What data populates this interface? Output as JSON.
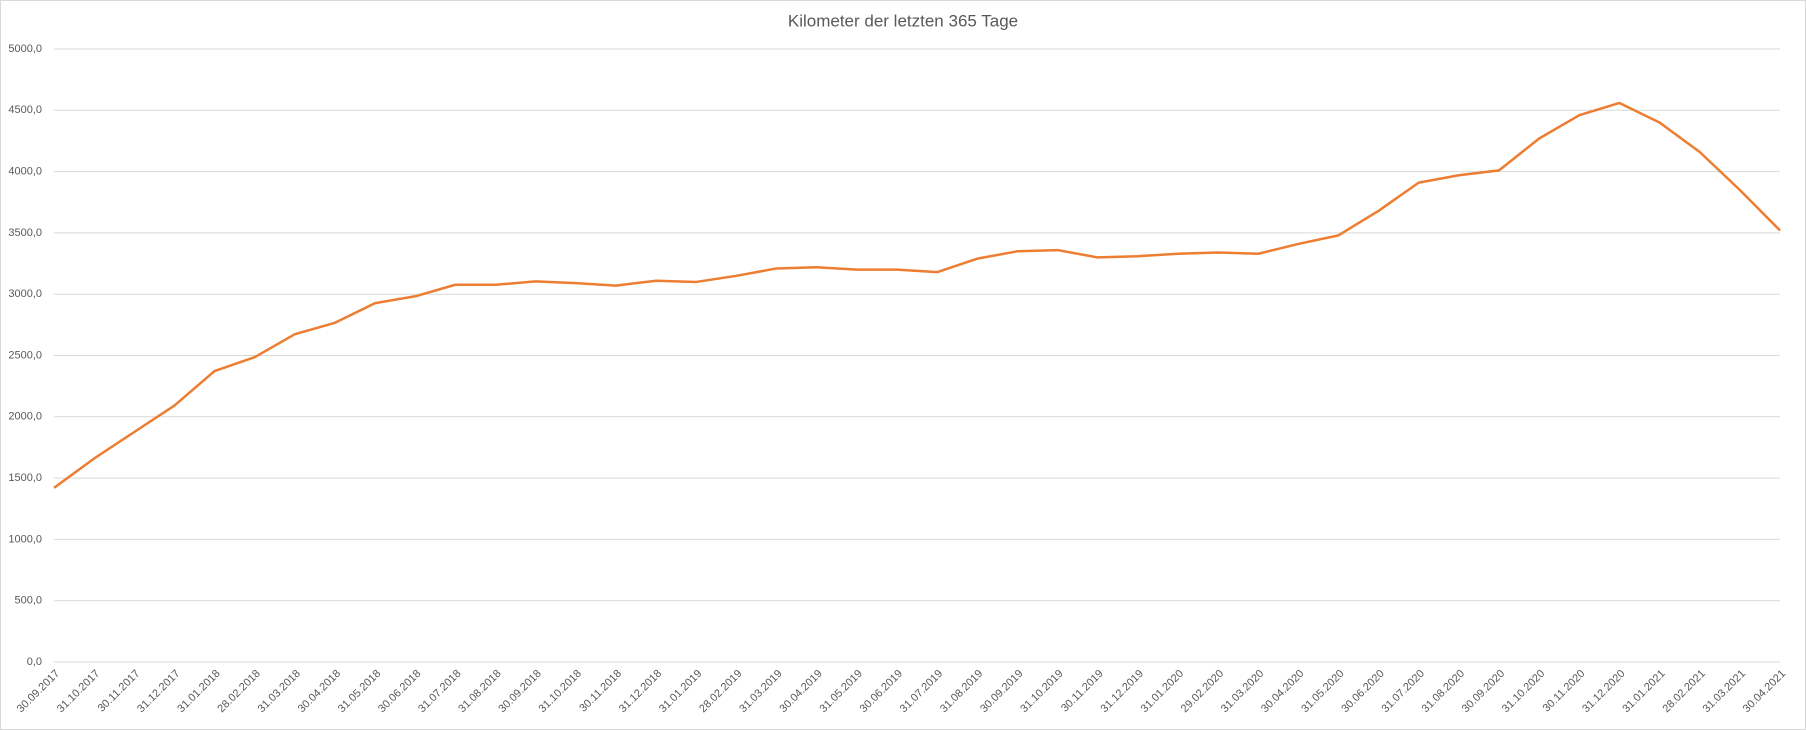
{
  "chart_data": {
    "type": "line",
    "title": "Kilometer der letzten 365 Tage",
    "categories": [
      "30.09.2017",
      "31.10.2017",
      "30.11.2017",
      "31.12.2017",
      "31.01.2018",
      "28.02.2018",
      "31.03.2018",
      "30.04.2018",
      "31.05.2018",
      "30.06.2018",
      "31.07.2018",
      "31.08.2018",
      "30.09.2018",
      "31.10.2018",
      "30.11.2018",
      "31.12.2018",
      "31.01.2019",
      "28.02.2019",
      "31.03.2019",
      "30.04.2019",
      "31.05.2019",
      "30.06.2019",
      "31.07.2019",
      "31.08.2019",
      "30.09.2019",
      "31.10.2019",
      "30.11.2019",
      "31.12.2019",
      "31.01.2020",
      "29.02.2020",
      "31.03.2020",
      "30.04.2020",
      "31.05.2020",
      "30.06.2020",
      "31.07.2020",
      "31.08.2020",
      "30.09.2020",
      "31.10.2020",
      "30.11.2020",
      "31.12.2020",
      "31.01.2021",
      "28.02.2021",
      "31.03.2021",
      "30.04.2021"
    ],
    "values": [
      1420,
      1660,
      1876,
      2092,
      2373,
      2486,
      2674,
      2767,
      2927,
      2983,
      3077,
      3077,
      3105,
      3090,
      3070,
      3110,
      3100,
      3150,
      3210,
      3220,
      3200,
      3200,
      3180,
      3290,
      3350,
      3360,
      3300,
      3310,
      3330,
      3340,
      3330,
      3410,
      3480,
      3680,
      3910,
      3970,
      4010,
      4270,
      4460,
      4560,
      4400,
      4160,
      3850,
      3520
    ],
    "color": "#ed7d31",
    "ylim": [
      0,
      5000
    ],
    "yticks": [
      {
        "value": 0,
        "label": "0,0"
      },
      {
        "value": 500,
        "label": "500,0"
      },
      {
        "value": 1000,
        "label": "1000,0"
      },
      {
        "value": 1500,
        "label": "1500,0"
      },
      {
        "value": 2000,
        "label": "2000,0"
      },
      {
        "value": 2500,
        "label": "2500,0"
      },
      {
        "value": 3000,
        "label": "3000,0"
      },
      {
        "value": 3500,
        "label": "3500,0"
      },
      {
        "value": 4000,
        "label": "4000,0"
      },
      {
        "value": 4500,
        "label": "4500,0"
      },
      {
        "value": 5000,
        "label": "5000,0"
      }
    ],
    "grid": true
  }
}
